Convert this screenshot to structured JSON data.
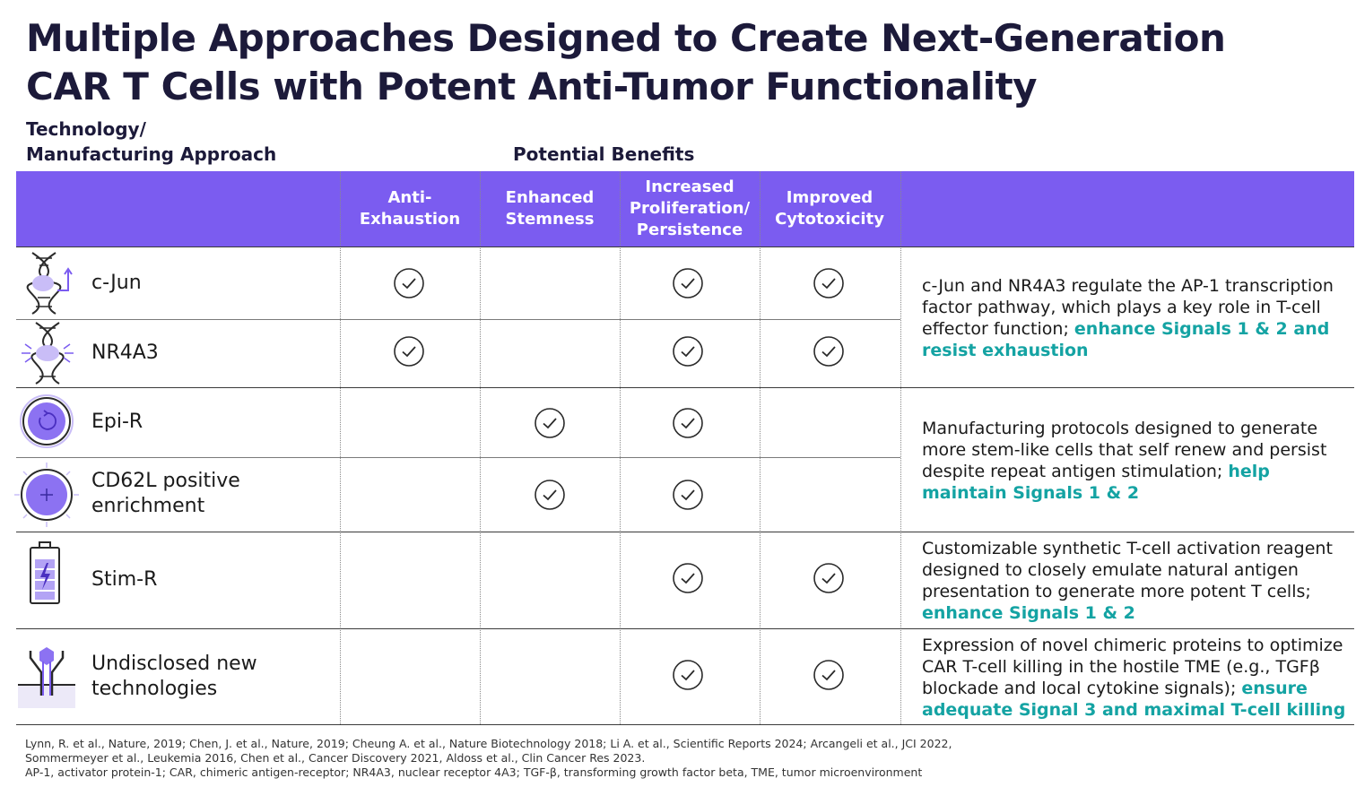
{
  "title_line1": "Multiple Approaches Designed to Create Next-Generation",
  "title_line2": "CAR T Cells with Potent Anti-Tumor Functionality",
  "tech_label_line1": "Technology/",
  "tech_label_line2": "Manufacturing Approach",
  "benefits_label": "Potential Benefits",
  "columns": [
    {
      "line1": "Anti-",
      "line2": "Exhaustion",
      "line3": ""
    },
    {
      "line1": "Enhanced",
      "line2": "Stemness",
      "line3": ""
    },
    {
      "line1": "Increased",
      "line2": "Proliferation/",
      "line3": "Persistence"
    },
    {
      "line1": "Improved",
      "line2": "Cytotoxicity",
      "line3": ""
    }
  ],
  "rows": [
    {
      "label1": "c-Jun",
      "label2": "",
      "icon": "dna-arrow-icon",
      "checks": [
        true,
        false,
        true,
        true
      ]
    },
    {
      "label1": "NR4A3",
      "label2": "",
      "icon": "dna-burst-icon",
      "checks": [
        true,
        false,
        true,
        true
      ]
    },
    {
      "label1": "Epi-R",
      "label2": "",
      "icon": "cell-cycle-icon",
      "checks": [
        false,
        true,
        true,
        false
      ]
    },
    {
      "label1": "CD62L positive",
      "label2": "enrichment",
      "icon": "cell-plus-icon",
      "checks": [
        false,
        true,
        true,
        false
      ]
    },
    {
      "label1": "Stim-R",
      "label2": "",
      "icon": "battery-bolt-icon",
      "checks": [
        false,
        false,
        true,
        true
      ]
    },
    {
      "label1": "Undisclosed new",
      "label2": "technologies",
      "icon": "receptor-icon",
      "checks": [
        false,
        false,
        true,
        true
      ]
    }
  ],
  "descriptions": [
    {
      "text": "c-Jun and NR4A3 regulate the AP-1 transcription factor pathway, which plays a key role in T-cell effector function; ",
      "highlight": "enhance Signals 1 & 2 and resist exhaustion"
    },
    {
      "text": "Manufacturing protocols designed to generate more stem-like cells that self renew and persist despite repeat antigen stimulation; ",
      "highlight": "help maintain Signals 1 & 2"
    },
    {
      "text": "Customizable synthetic T-cell activation reagent designed to closely emulate natural antigen presentation to generate more potent T cells; ",
      "highlight": "enhance Signals 1 & 2"
    },
    {
      "text": "Expression of novel chimeric proteins to optimize CAR T-cell killing in the hostile TME (e.g., TGFβ blockade and local cytokine signals); ",
      "highlight": "ensure adequate Signal 3 and maximal T-cell killing"
    }
  ],
  "references": {
    "line1": "Lynn, R. et al., Nature, 2019; Chen, J. et al., Nature, 2019; Cheung A. et al., Nature Biotechnology 2018; Li A. et al., Scientific Reports 2024; Arcangeli et al., JCI 2022,",
    "line2": "Sommermeyer et al., Leukemia 2016, Chen et al., Cancer Discovery 2021, Aldoss et al., Clin Cancer Res 2023.",
    "line3": "AP-1, activator protein-1; CAR, chimeric antigen-receptor; NR4A3, nuclear receptor 4A3; TGF-β, transforming growth factor beta, TME, tumor microenvironment"
  },
  "colors": {
    "header": "#7b5cf0",
    "highlight": "#14a3a3",
    "title": "#1c1a3a",
    "icon": "#7b5cf0"
  }
}
